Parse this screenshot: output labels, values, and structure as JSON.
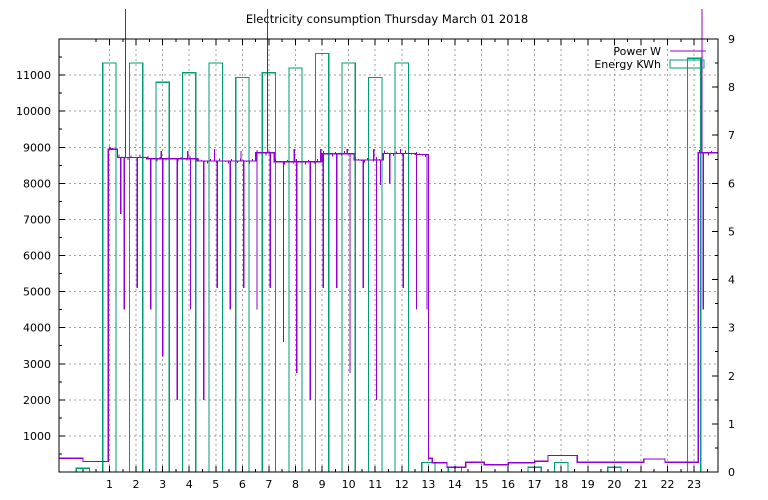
{
  "chart_data": {
    "type": "bar+line",
    "title": "Electricity consumption Thursday March 01 2018",
    "x": {
      "ticks": [
        "1",
        "2",
        "3",
        "4",
        "5",
        "6",
        "7",
        "8",
        "9",
        "10",
        "11",
        "12",
        "13",
        "14",
        "15",
        "16",
        "17",
        "18",
        "19",
        "20",
        "21",
        "22",
        "23"
      ],
      "range": [
        -0.9,
        23.9
      ]
    },
    "y_left": {
      "ticks": [
        "1000",
        "2000",
        "3000",
        "4000",
        "5000",
        "6000",
        "7000",
        "8000",
        "9000",
        "10000",
        "11000"
      ],
      "range": [
        0,
        12000
      ]
    },
    "y_right": {
      "ticks": [
        "0",
        "1",
        "2",
        "3",
        "4",
        "5",
        "6",
        "7",
        "8",
        "9"
      ],
      "range": [
        0,
        9
      ]
    },
    "grid": true,
    "legend_position": "top-right",
    "colors": {
      "power": "#9400d3",
      "energy": "#009e73"
    },
    "series": [
      {
        "name": "Energy KWh",
        "axis": "right",
        "type": "bar",
        "points": [
          [
            0,
            0.08
          ],
          [
            1,
            8.5
          ],
          [
            2,
            8.5
          ],
          [
            3,
            8.1
          ],
          [
            4,
            8.3
          ],
          [
            5,
            8.5
          ],
          [
            6,
            8.2
          ],
          [
            7,
            8.3
          ],
          [
            8,
            8.4
          ],
          [
            9,
            8.7
          ],
          [
            10,
            8.5
          ],
          [
            11,
            8.2
          ],
          [
            12,
            8.5
          ],
          [
            13,
            0.2
          ],
          [
            14,
            0.1
          ],
          [
            17,
            0.1
          ],
          [
            18,
            0.2
          ],
          [
            20,
            0.1
          ],
          [
            23,
            8.6
          ]
        ]
      },
      {
        "name": "Power W",
        "axis": "left",
        "type": "line",
        "base_segments": [
          [
            -0.9,
            0.0,
            380
          ],
          [
            0.0,
            0.95,
            290
          ],
          [
            0.95,
            1.3,
            8950
          ],
          [
            1.3,
            2.4,
            8720
          ],
          [
            2.4,
            4.3,
            8680
          ],
          [
            4.3,
            6.5,
            8620
          ],
          [
            6.5,
            7.2,
            8850
          ],
          [
            7.2,
            9.0,
            8600
          ],
          [
            9.0,
            10.2,
            8820
          ],
          [
            10.2,
            11.3,
            8650
          ],
          [
            11.3,
            12.5,
            8830
          ],
          [
            12.5,
            13.0,
            8800
          ],
          [
            13.0,
            13.15,
            380
          ],
          [
            13.15,
            13.7,
            260
          ],
          [
            13.7,
            14.4,
            130
          ],
          [
            14.4,
            15.1,
            270
          ],
          [
            15.1,
            16.0,
            200
          ],
          [
            16.0,
            17.0,
            260
          ],
          [
            17.0,
            17.5,
            300
          ],
          [
            17.5,
            18.6,
            460
          ],
          [
            18.6,
            21.1,
            270
          ],
          [
            21.1,
            21.9,
            360
          ],
          [
            21.9,
            23.15,
            270
          ],
          [
            23.15,
            23.9,
            8850
          ]
        ],
        "spikes": [
          [
            1.05,
            9000
          ],
          [
            1.42,
            7150
          ],
          [
            1.55,
            4500
          ],
          [
            1.6,
            12000
          ],
          [
            2.05,
            5100
          ],
          [
            2.55,
            4500
          ],
          [
            2.95,
            8900
          ],
          [
            3.0,
            3200
          ],
          [
            3.55,
            2000
          ],
          [
            3.95,
            8900
          ],
          [
            4.05,
            4500
          ],
          [
            4.55,
            2000
          ],
          [
            4.95,
            8950
          ],
          [
            5.05,
            5100
          ],
          [
            5.55,
            4500
          ],
          [
            5.95,
            8900
          ],
          [
            6.05,
            5100
          ],
          [
            6.55,
            4500
          ],
          [
            6.95,
            12000
          ],
          [
            7.05,
            5100
          ],
          [
            7.55,
            3600
          ],
          [
            7.95,
            8950
          ],
          [
            8.05,
            2750
          ],
          [
            8.55,
            2000
          ],
          [
            8.95,
            8950
          ],
          [
            9.05,
            5100
          ],
          [
            9.55,
            5100
          ],
          [
            9.95,
            8950
          ],
          [
            10.05,
            2750
          ],
          [
            10.55,
            5100
          ],
          [
            10.95,
            8950
          ],
          [
            11.05,
            2000
          ],
          [
            11.2,
            7950
          ],
          [
            11.55,
            8000
          ],
          [
            11.95,
            8950
          ],
          [
            12.05,
            5100
          ],
          [
            12.55,
            4500
          ],
          [
            12.95,
            4500
          ],
          [
            23.3,
            12000
          ],
          [
            23.35,
            4500
          ]
        ]
      }
    ]
  }
}
